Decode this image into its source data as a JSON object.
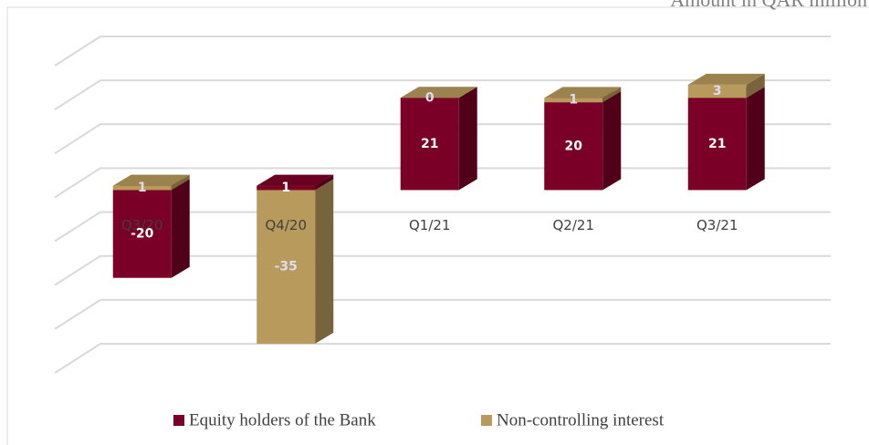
{
  "chart_data": {
    "type": "bar3d_stacked",
    "title": "Amount in QAR million",
    "categories": [
      "Q3/20",
      "Q4/20",
      "Q1/21",
      "Q2/21",
      "Q3/21"
    ],
    "series": [
      {
        "name": "Equity holders of the Bank",
        "color": "#7b0027",
        "values": [
          -20,
          1,
          21,
          20,
          21
        ]
      },
      {
        "name": "Non-controlling interest",
        "color": "#b89a5c",
        "values": [
          1,
          -35,
          0,
          1,
          3
        ]
      }
    ],
    "ylim": [
      -40,
      30
    ],
    "yticks": [
      -40,
      -30,
      -20,
      -10,
      0,
      10,
      20,
      30
    ],
    "grid": true,
    "legend": "bottom"
  }
}
